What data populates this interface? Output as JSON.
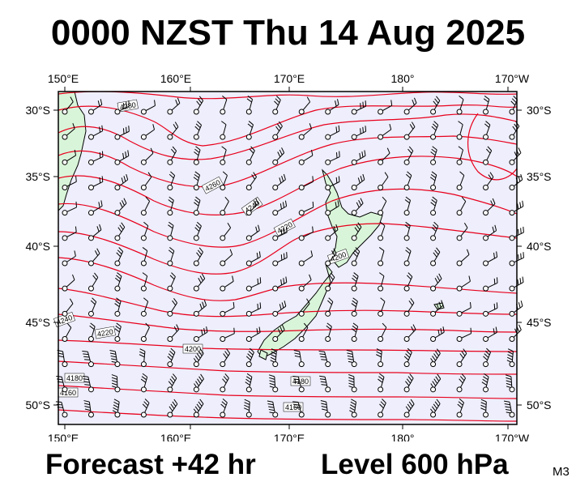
{
  "title": "0000 NZST Thu 14 Aug 2025",
  "footer": {
    "forecast": "Forecast +42 hr",
    "level": "Level 600 hPa",
    "model": "M3"
  },
  "axes": {
    "lon_labels": [
      "150°E",
      "160°E",
      "170°E",
      "180°",
      "170°W"
    ],
    "lat_labels": [
      "30°S",
      "35°S",
      "40°S",
      "45°S",
      "50°S"
    ]
  },
  "contour_labels": [
    "4280",
    "4260",
    "4240",
    "4220",
    "4240",
    "4220",
    "4200",
    "4200",
    "4180",
    "4180",
    "4160",
    "4160"
  ],
  "colors": {
    "ocean": "#eeeefc",
    "land": "#d9f5d9",
    "contour": "#e8001c",
    "coastline": "#000000",
    "wind": "#000000"
  }
}
